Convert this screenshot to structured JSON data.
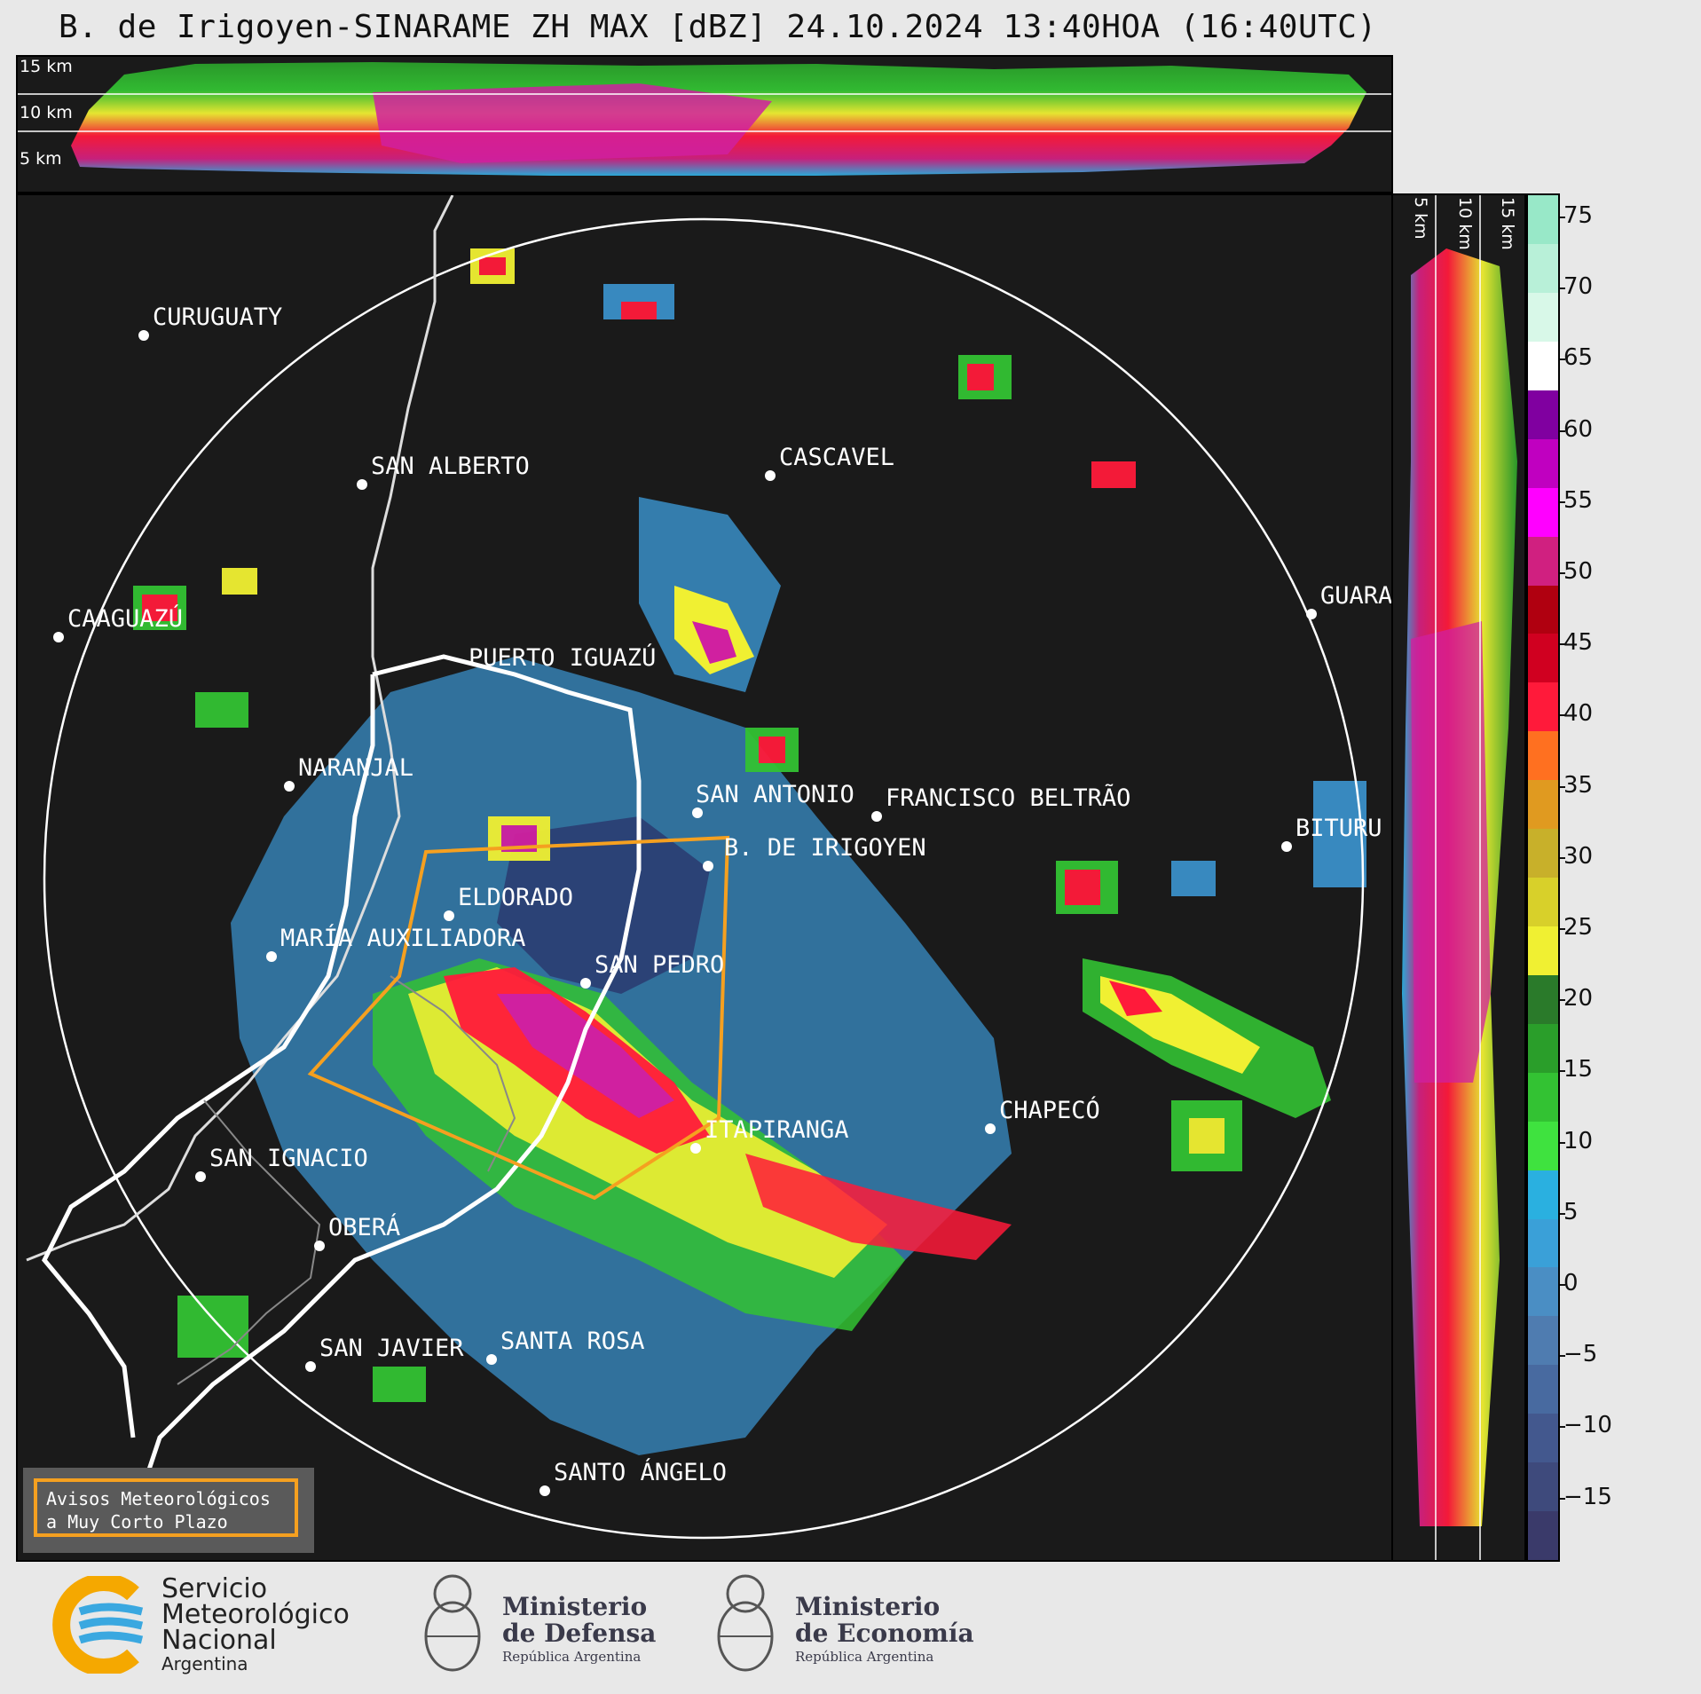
{
  "title": "B. de Irigoyen-SINARAME ZH MAX [dBZ] 24.10.2024 13:40HOA (16:40UTC)",
  "height_labels_top": [
    "15 km",
    "10 km",
    "5 km"
  ],
  "height_labels_right": [
    "5 km",
    "10 km",
    "15 km"
  ],
  "colorbar": {
    "ticks": [
      "75",
      "70",
      "65",
      "60",
      "55",
      "50",
      "45",
      "40",
      "35",
      "30",
      "25",
      "20",
      "15",
      "10",
      "5",
      "0",
      "−5",
      "−10",
      "−15"
    ],
    "colors": [
      "#3a3a6a",
      "#3e4a7c",
      "#43588e",
      "#486aa0",
      "#4f7cb0",
      "#4a8ec4",
      "#3aa0d8",
      "#2ab0e0",
      "#3fe23f",
      "#33c233",
      "#2a9e2a",
      "#2a7a2a",
      "#f0f032",
      "#d8d02a",
      "#c8b02a",
      "#e09a20",
      "#ff7020",
      "#ff1a3a",
      "#d00020",
      "#b00010",
      "#d02080",
      "#ff00ff",
      "#c000c0",
      "#8000a0",
      "#ffffff",
      "#d8f8e8",
      "#b8f0d8",
      "#98e8c8"
    ]
  },
  "cities": [
    {
      "name": "CURUGUATY"
    },
    {
      "name": "SAN ALBERTO"
    },
    {
      "name": "CASCAVEL"
    },
    {
      "name": "CAAGUAZÚ"
    },
    {
      "name": "GUARA"
    },
    {
      "name": "PUERTO IGUAZÚ"
    },
    {
      "name": "NARANJAL"
    },
    {
      "name": "SAN ANTONIO"
    },
    {
      "name": "FRANCISCO BELTRÃO"
    },
    {
      "name": "B. DE IRIGOYEN"
    },
    {
      "name": "BITURU"
    },
    {
      "name": "ELDORADO"
    },
    {
      "name": "MARÍA AUXILIADORA"
    },
    {
      "name": "SAN PEDRO"
    },
    {
      "name": "CHAPECÓ"
    },
    {
      "name": "ITAPIRANGA"
    },
    {
      "name": "SAN IGNACIO"
    },
    {
      "name": "OBERÁ"
    },
    {
      "name": "SAN JAVIER"
    },
    {
      "name": "SANTA ROSA"
    },
    {
      "name": "SANTO ÁNGELO"
    }
  ],
  "warning_box": {
    "line1": "Avisos Meteorológicos",
    "line2": "a Muy Corto Plazo"
  },
  "logos": {
    "smn": {
      "line1": "Servicio",
      "line2": "Meteorológico",
      "line3": "Nacional",
      "line4": "Argentina"
    },
    "defensa": {
      "line1": "Ministerio",
      "line2": "de Defensa",
      "line3": "República Argentina"
    },
    "economia": {
      "line1": "Ministerio",
      "line2": "de Economía",
      "line3": "República Argentina"
    }
  }
}
